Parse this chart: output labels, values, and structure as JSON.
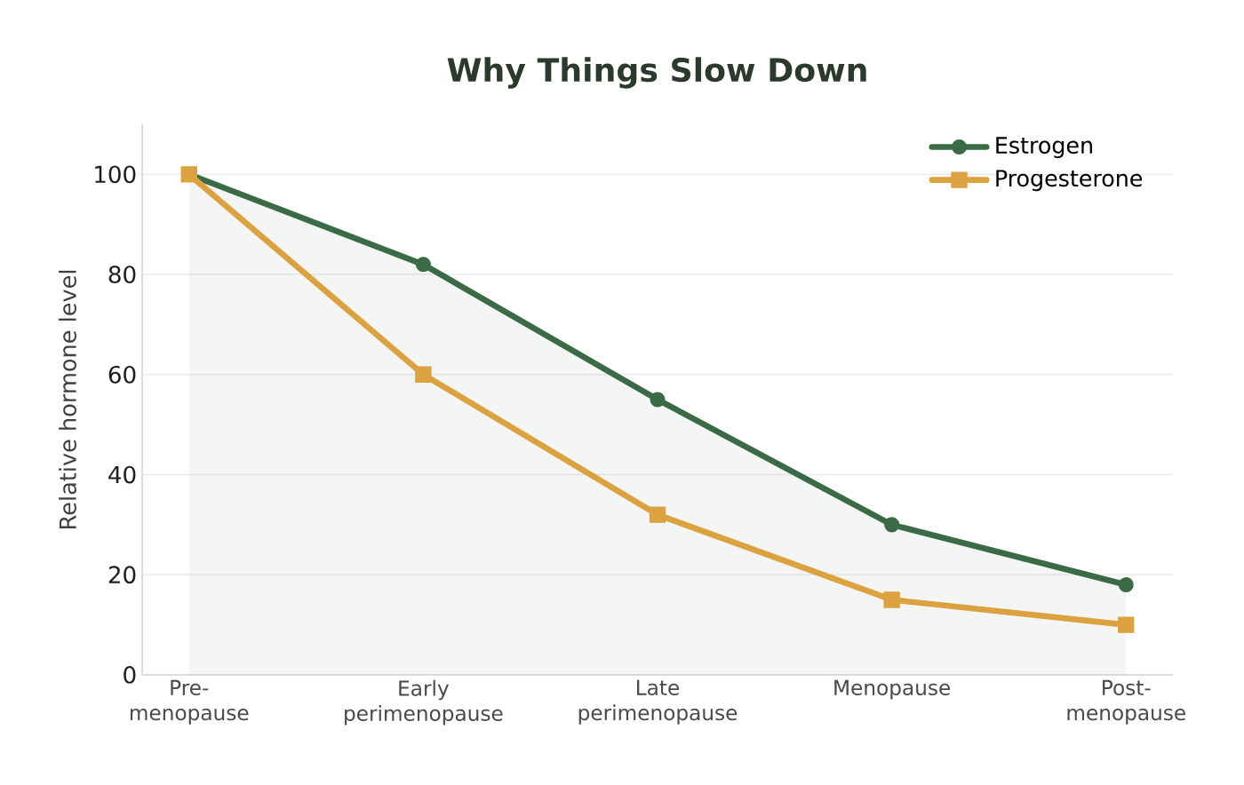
{
  "chart_data": {
    "type": "line",
    "title": "Why Things Slow Down",
    "ylabel": "Relative hormone level",
    "categories": [
      "Pre-menopause",
      "Early perimenopause",
      "Late perimenopause",
      "Menopause",
      "Post-menopause"
    ],
    "series": [
      {
        "name": "Estrogen",
        "type": "area",
        "color": "#3b6b46",
        "marker": "circle",
        "values": [
          100,
          82,
          55,
          30,
          18
        ]
      },
      {
        "name": "Progesterone",
        "color": "#dba23f",
        "marker": "square",
        "values": [
          100,
          60,
          32,
          15,
          10
        ]
      }
    ],
    "ylim": [
      0,
      110
    ],
    "yticks": [
      0,
      20,
      40,
      60,
      80,
      100
    ],
    "grid": "y",
    "legend": "top right",
    "line_style": "solid"
  }
}
